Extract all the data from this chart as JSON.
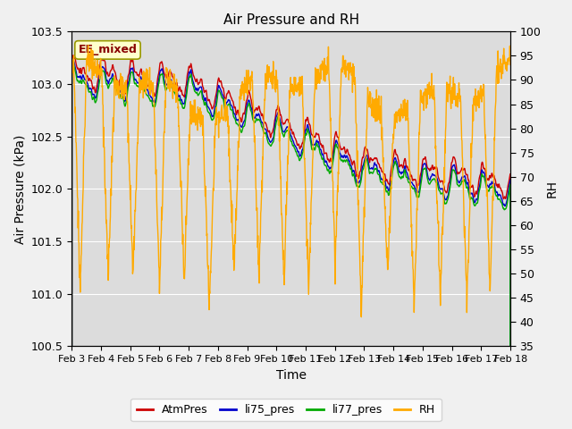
{
  "title": "Air Pressure and RH",
  "xlabel": "Time",
  "ylabel_left": "Air Pressure (kPa)",
  "ylabel_right": "RH",
  "annotation": "EE_mixed",
  "ylim_left": [
    100.5,
    103.5
  ],
  "ylim_right": [
    35,
    100
  ],
  "yticks_left": [
    100.5,
    101.0,
    101.5,
    102.0,
    102.5,
    103.0,
    103.5
  ],
  "yticks_right": [
    35,
    40,
    45,
    50,
    55,
    60,
    65,
    70,
    75,
    80,
    85,
    90,
    95,
    100
  ],
  "xtick_labels": [
    "Feb 3",
    "Feb 4",
    "Feb 5",
    "Feb 6",
    "Feb 7",
    "Feb 8",
    "Feb 9",
    "Feb 10",
    "Feb 11",
    "Feb 12",
    "Feb 13",
    "Feb 14",
    "Feb 15",
    "Feb 16",
    "Feb 17",
    "Feb 18"
  ],
  "n_days": 15,
  "pts_per_day": 96,
  "colors": {
    "AtmPres": "#cc0000",
    "li75_pres": "#0000cc",
    "li77_pres": "#00aa00",
    "RH": "#ffaa00"
  },
  "background_color": "#dcdcdc",
  "fig_bg_color": "#f0f0f0",
  "annotation_bg": "#ffffcc",
  "annotation_border": "#999900",
  "annotation_text_color": "#880000",
  "linewidth": 1.0,
  "title_fontsize": 11,
  "ylabel_fontsize": 10,
  "xlabel_fontsize": 10,
  "ytick_fontsize": 9,
  "xtick_fontsize": 8,
  "legend_fontsize": 9
}
